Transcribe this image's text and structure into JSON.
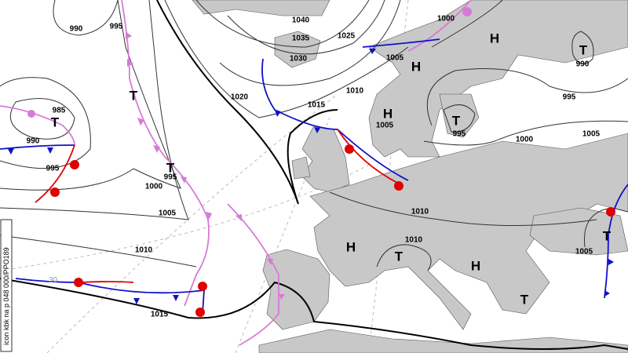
{
  "isobar_labels": [
    "990",
    "995",
    "1040",
    "1035",
    "1030",
    "1025",
    "1020",
    "1015",
    "1010",
    "1005",
    "1000",
    "985",
    "990",
    "995",
    "1000",
    "995",
    "1005",
    "1010",
    "1015",
    "1005",
    "995",
    "995",
    "1000",
    "1005",
    "1010",
    "1010",
    "1005",
    "990"
  ],
  "pressure_centers": [
    "H",
    "H",
    "H",
    "H",
    "H",
    "T",
    "T",
    "T",
    "T",
    "T",
    "T",
    "T",
    "T"
  ],
  "side_label": "icon kbk na p 048 000/PPO189",
  "grid_label": "30"
}
